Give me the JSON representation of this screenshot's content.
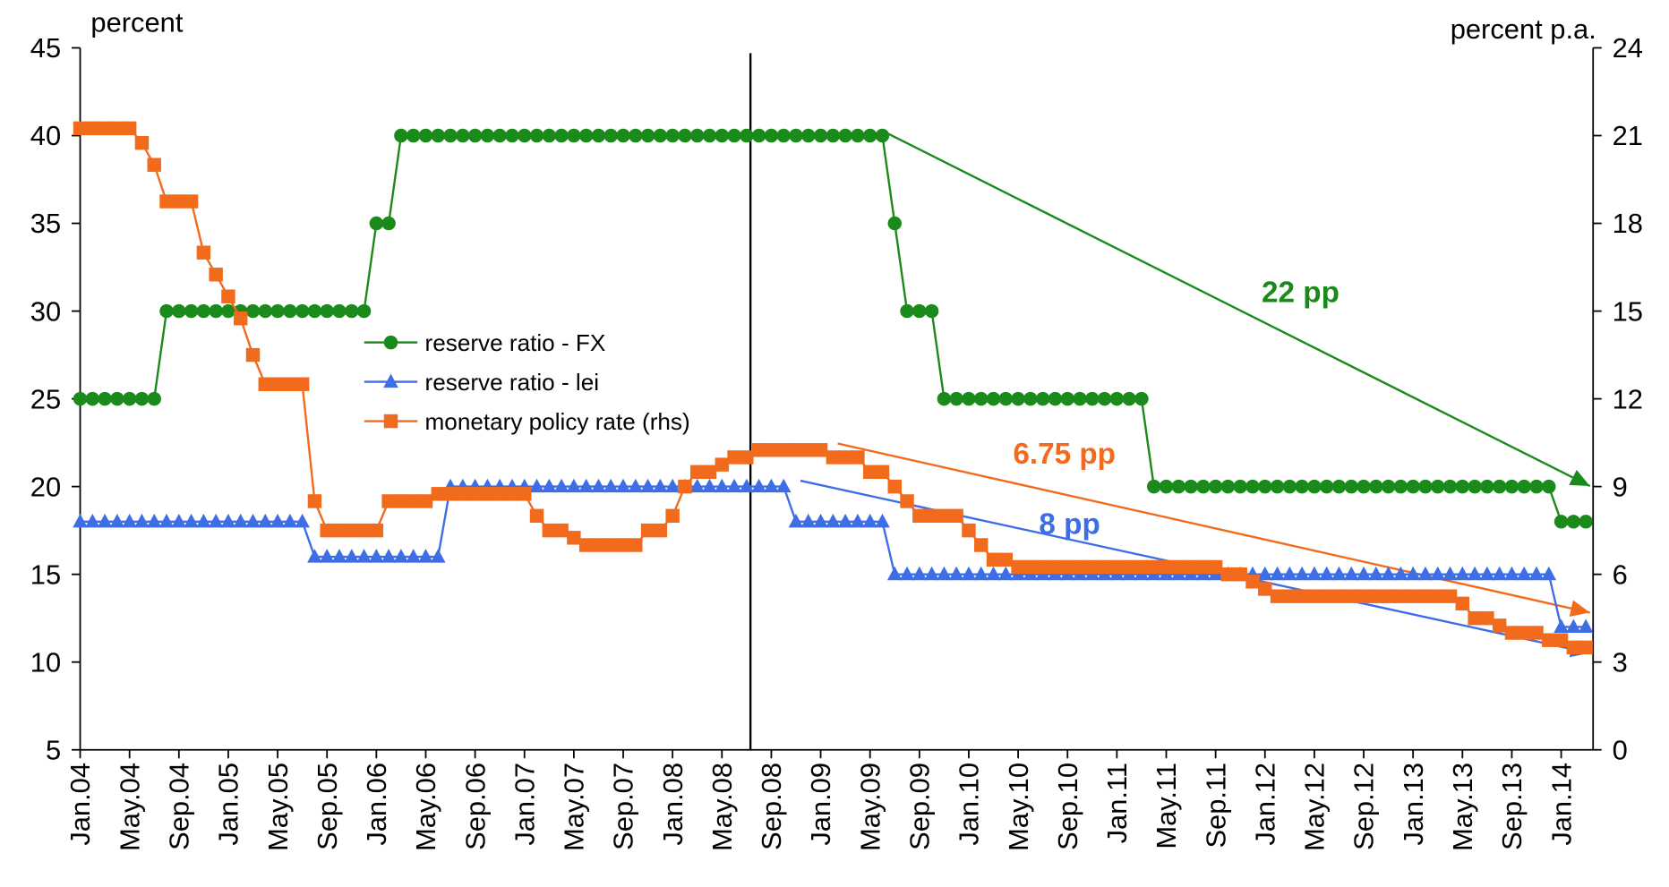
{
  "chart_data": {
    "type": "line",
    "y_axis_label": "percent",
    "y2_axis_label": "percent p.a.",
    "categories": [
      "Jan.04",
      null,
      null,
      null,
      "May.04",
      null,
      null,
      null,
      "Sep.04",
      null,
      null,
      null,
      "Jan.05",
      null,
      null,
      null,
      "May.05",
      null,
      null,
      null,
      "Sep.05",
      null,
      null,
      null,
      "Jan.06",
      null,
      null,
      null,
      "May.06",
      null,
      null,
      null,
      "Sep.06",
      null,
      null,
      null,
      "Jan.07",
      null,
      null,
      null,
      "May.07",
      null,
      null,
      null,
      "Sep.07",
      null,
      null,
      null,
      "Jan.08",
      null,
      null,
      null,
      "May.08",
      null,
      null,
      null,
      "Sep.08",
      null,
      null,
      null,
      "Jan.09",
      null,
      null,
      null,
      "May.09",
      null,
      null,
      null,
      "Sep.09",
      null,
      null,
      null,
      "Jan.10",
      null,
      null,
      null,
      "May.10",
      null,
      null,
      null,
      "Sep.10",
      null,
      null,
      null,
      "Jan.11",
      null,
      null,
      null,
      "May.11",
      null,
      null,
      null,
      "Sep.11",
      null,
      null,
      null,
      "Jan.12",
      null,
      null,
      null,
      "May.12",
      null,
      null,
      null,
      "Sep.12",
      null,
      null,
      null,
      "Jan.13",
      null,
      null,
      null,
      "May.13",
      null,
      null,
      null,
      "Sep.13",
      null,
      null,
      null,
      "Jan.14",
      null,
      null
    ],
    "series": [
      {
        "name": "reserve ratio - FX",
        "color": "#1a8a1a",
        "marker": "circle",
        "values": [
          25,
          25,
          25,
          25,
          25,
          25,
          25,
          30,
          30,
          30,
          30,
          30,
          30,
          30,
          30,
          30,
          30,
          30,
          30,
          30,
          30,
          30,
          30,
          30,
          35,
          35,
          40,
          40,
          40,
          40,
          40,
          40,
          40,
          40,
          40,
          40,
          40,
          40,
          40,
          40,
          40,
          40,
          40,
          40,
          40,
          40,
          40,
          40,
          40,
          40,
          40,
          40,
          40,
          40,
          40,
          40,
          40,
          40,
          40,
          40,
          40,
          40,
          40,
          40,
          40,
          40,
          35,
          30,
          30,
          30,
          25,
          25,
          25,
          25,
          25,
          25,
          25,
          25,
          25,
          25,
          25,
          25,
          25,
          25,
          25,
          25,
          25,
          20,
          20,
          20,
          20,
          20,
          20,
          20,
          20,
          20,
          20,
          20,
          20,
          20,
          20,
          20,
          20,
          20,
          20,
          20,
          20,
          20,
          20,
          20,
          20,
          20,
          20,
          20,
          20,
          20,
          20,
          20,
          20,
          20,
          18,
          18,
          18
        ]
      },
      {
        "name": "reserve ratio - lei",
        "color": "#3d6ee6",
        "marker": "triangle",
        "values": [
          18,
          18,
          18,
          18,
          18,
          18,
          18,
          18,
          18,
          18,
          18,
          18,
          18,
          18,
          18,
          18,
          18,
          18,
          18,
          16,
          16,
          16,
          16,
          16,
          16,
          16,
          16,
          16,
          16,
          16,
          20,
          20,
          20,
          20,
          20,
          20,
          20,
          20,
          20,
          20,
          20,
          20,
          20,
          20,
          20,
          20,
          20,
          20,
          20,
          20,
          20,
          20,
          20,
          20,
          20,
          20,
          20,
          20,
          18,
          18,
          18,
          18,
          18,
          18,
          18,
          18,
          15,
          15,
          15,
          15,
          15,
          15,
          15,
          15,
          15,
          15,
          15,
          15,
          15,
          15,
          15,
          15,
          15,
          15,
          15,
          15,
          15,
          15,
          15,
          15,
          15,
          15,
          15,
          15,
          15,
          15,
          15,
          15,
          15,
          15,
          15,
          15,
          15,
          15,
          15,
          15,
          15,
          15,
          15,
          15,
          15,
          15,
          15,
          15,
          15,
          15,
          15,
          15,
          15,
          15,
          12,
          12,
          12
        ]
      },
      {
        "name": "monetary policy rate (rhs)",
        "color": "#f26b1d",
        "marker": "square",
        "axis": "y2",
        "values": [
          21.25,
          21.25,
          21.25,
          21.25,
          21.25,
          20.75,
          20,
          18.75,
          18.75,
          18.75,
          17,
          16.25,
          15.5,
          14.75,
          13.5,
          12.5,
          12.5,
          12.5,
          12.5,
          8.5,
          7.5,
          7.5,
          7.5,
          7.5,
          7.5,
          8.5,
          8.5,
          8.5,
          8.5,
          8.75,
          8.75,
          8.75,
          8.75,
          8.75,
          8.75,
          8.75,
          8.75,
          8,
          7.5,
          7.5,
          7.25,
          7,
          7,
          7,
          7,
          7,
          7.5,
          7.5,
          8,
          9,
          9.5,
          9.5,
          9.75,
          10,
          10,
          10.25,
          10.25,
          10.25,
          10.25,
          10.25,
          10.25,
          10,
          10,
          10,
          9.5,
          9.5,
          9,
          8.5,
          8,
          8,
          8,
          8,
          7.5,
          7,
          6.5,
          6.5,
          6.25,
          6.25,
          6.25,
          6.25,
          6.25,
          6.25,
          6.25,
          6.25,
          6.25,
          6.25,
          6.25,
          6.25,
          6.25,
          6.25,
          6.25,
          6.25,
          6.25,
          6,
          6,
          5.75,
          5.5,
          5.25,
          5.25,
          5.25,
          5.25,
          5.25,
          5.25,
          5.25,
          5.25,
          5.25,
          5.25,
          5.25,
          5.25,
          5.25,
          5.25,
          5.25,
          5,
          4.5,
          4.5,
          4.25,
          4,
          4,
          4,
          3.75,
          3.75,
          3.5,
          3.5
        ]
      }
    ],
    "ylim": [
      5,
      45
    ],
    "yticks": [
      5,
      10,
      15,
      20,
      25,
      30,
      35,
      40,
      45
    ],
    "y2lim": [
      0,
      24
    ],
    "y2ticks": [
      0,
      3,
      6,
      9,
      12,
      15,
      18,
      21,
      24
    ],
    "grid": false,
    "annotations": [
      {
        "text": "22 pp",
        "color": "#1a8a1a"
      },
      {
        "text": "6.75 pp",
        "color": "#f26b1d"
      },
      {
        "text": "8 pp",
        "color": "#3d6ee6"
      }
    ]
  }
}
